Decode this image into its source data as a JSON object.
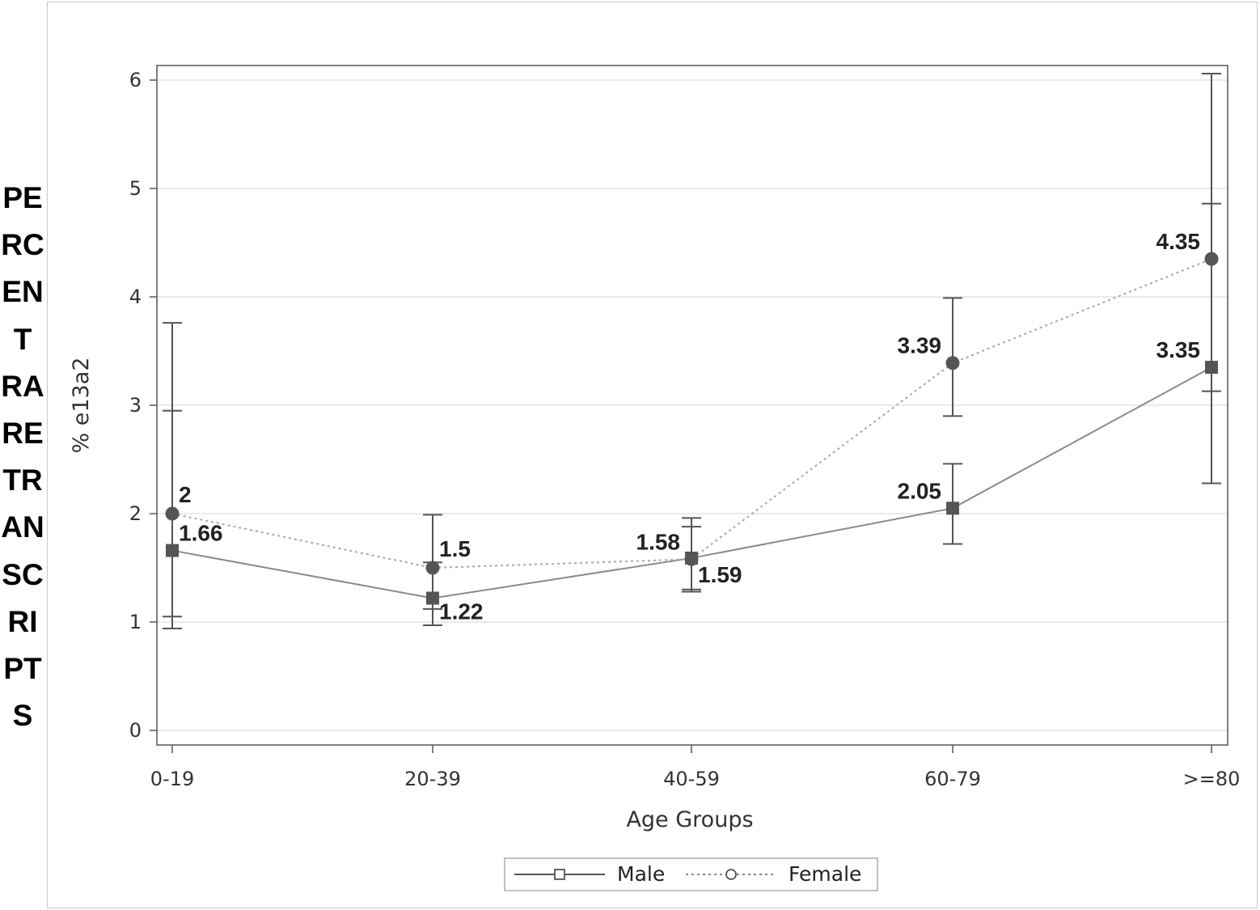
{
  "page_label": "PERCENT RARE TRANSCRIPTS",
  "chart_data": {
    "type": "line",
    "xlabel": "Age Groups",
    "ylabel": "% e13a2",
    "ylim": [
      0,
      6
    ],
    "yticks": [
      "0",
      "1",
      "2",
      "3",
      "4",
      "5",
      "6"
    ],
    "categories": [
      "0-19",
      "20-39",
      "40-59",
      "60-79",
      ">=80"
    ],
    "grid": true,
    "legend_position": "bottom",
    "series": [
      {
        "name": "Male",
        "line_style": "solid",
        "marker": "square",
        "color": "#555555",
        "values": [
          1.66,
          1.22,
          1.59,
          2.05,
          3.35
        ],
        "labels": [
          "1.66",
          "1.22",
          "1.59",
          "2.05",
          "3.35"
        ],
        "ci_lower": [
          1.05,
          1.12,
          1.3,
          1.72,
          2.28
        ],
        "ci_upper": [
          2.95,
          1.55,
          1.88,
          2.46,
          4.86
        ]
      },
      {
        "name": "Female",
        "line_style": "dotted",
        "marker": "circle",
        "color": "#555555",
        "values": [
          2.0,
          1.5,
          1.58,
          3.39,
          4.35
        ],
        "labels": [
          "2",
          "1.5",
          "1.58",
          "3.39",
          "4.35"
        ],
        "ci_lower": [
          0.94,
          0.97,
          1.28,
          2.9,
          3.13
        ],
        "ci_upper": [
          3.76,
          1.99,
          1.96,
          3.99,
          6.06
        ]
      }
    ]
  }
}
